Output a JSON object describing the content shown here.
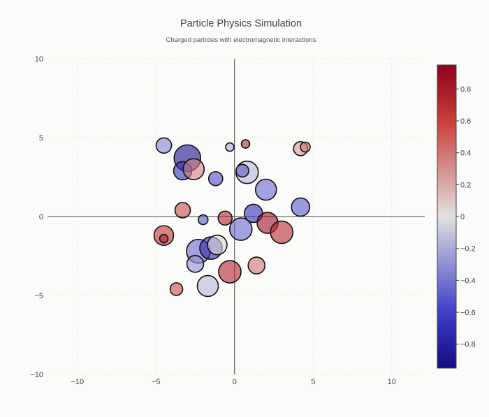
{
  "chart_data": {
    "type": "scatter",
    "title": "Particle Physics Simulation",
    "subtitle": "Charged particles with electromagnetic interactions",
    "xlabel": "",
    "ylabel": "",
    "xlim": [
      -11.9,
      12.1
    ],
    "ylim": [
      -10,
      10
    ],
    "xticks": [
      -10,
      -5,
      0,
      5,
      10
    ],
    "yticks": [
      -10,
      -5,
      0,
      5,
      10
    ],
    "x_tick_labels": [
      "−10",
      "−5",
      "0",
      "5",
      "10"
    ],
    "y_tick_labels": [
      "−10",
      "−5",
      "0",
      "5",
      "10"
    ],
    "grid": true,
    "zero_lines": true,
    "marker": "circle, size encodes particle magnitude, color encodes charge",
    "colorbar": {
      "colorscale": "coolwarm",
      "range": [
        -0.95,
        0.95
      ],
      "ticks": [
        0.8,
        0.6,
        0.4,
        0.2,
        0,
        -0.2,
        -0.4,
        -0.6,
        -0.8
      ],
      "tick_labels": [
        "0.8",
        "0.6",
        "0.4",
        "0.2",
        "0",
        "−0.2",
        "−0.4",
        "−0.6",
        "−0.8"
      ]
    },
    "points": [
      {
        "x": -4.5,
        "y": 4.5,
        "charge": -0.35,
        "size": 11
      },
      {
        "x": -3.0,
        "y": 3.7,
        "charge": -0.9,
        "size": 19
      },
      {
        "x": -3.3,
        "y": 2.9,
        "charge": -0.7,
        "size": 13
      },
      {
        "x": -2.6,
        "y": 3.0,
        "charge": 0.35,
        "size": 15
      },
      {
        "x": -1.2,
        "y": 2.4,
        "charge": -0.55,
        "size": 10
      },
      {
        "x": -0.3,
        "y": 4.4,
        "charge": -0.2,
        "size": 6
      },
      {
        "x": 0.7,
        "y": 4.6,
        "charge": 0.7,
        "size": 6
      },
      {
        "x": 0.8,
        "y": 2.8,
        "charge": -0.15,
        "size": 16
      },
      {
        "x": 0.5,
        "y": 2.9,
        "charge": -0.5,
        "size": 9
      },
      {
        "x": 4.2,
        "y": 4.3,
        "charge": 0.25,
        "size": 10
      },
      {
        "x": 4.5,
        "y": 4.4,
        "charge": 0.4,
        "size": 7
      },
      {
        "x": 2.0,
        "y": 1.7,
        "charge": -0.45,
        "size": 15
      },
      {
        "x": 4.2,
        "y": 0.6,
        "charge": -0.5,
        "size": 13
      },
      {
        "x": -3.3,
        "y": 0.4,
        "charge": 0.55,
        "size": 11
      },
      {
        "x": -2.0,
        "y": -0.2,
        "charge": -0.5,
        "size": 7
      },
      {
        "x": -0.6,
        "y": -0.1,
        "charge": 0.75,
        "size": 10
      },
      {
        "x": 1.2,
        "y": 0.2,
        "charge": -0.7,
        "size": 13
      },
      {
        "x": 2.1,
        "y": -0.4,
        "charge": 0.85,
        "size": 15
      },
      {
        "x": 3.0,
        "y": -1.0,
        "charge": 0.7,
        "size": 16
      },
      {
        "x": 0.4,
        "y": -0.8,
        "charge": -0.45,
        "size": 16
      },
      {
        "x": -4.5,
        "y": -1.2,
        "charge": 0.65,
        "size": 14
      },
      {
        "x": -4.5,
        "y": -1.4,
        "charge": 0.8,
        "size": 6
      },
      {
        "x": -2.3,
        "y": -2.2,
        "charge": -0.45,
        "size": 17
      },
      {
        "x": -1.5,
        "y": -2.0,
        "charge": -0.75,
        "size": 16
      },
      {
        "x": -1.1,
        "y": -1.8,
        "charge": 0.05,
        "size": 14
      },
      {
        "x": -2.5,
        "y": -3.0,
        "charge": -0.3,
        "size": 12
      },
      {
        "x": -0.3,
        "y": -3.5,
        "charge": 0.75,
        "size": 16
      },
      {
        "x": 1.4,
        "y": -3.1,
        "charge": 0.4,
        "size": 12
      },
      {
        "x": -1.7,
        "y": -4.4,
        "charge": -0.15,
        "size": 15
      },
      {
        "x": -3.7,
        "y": -4.6,
        "charge": 0.55,
        "size": 9
      }
    ]
  }
}
